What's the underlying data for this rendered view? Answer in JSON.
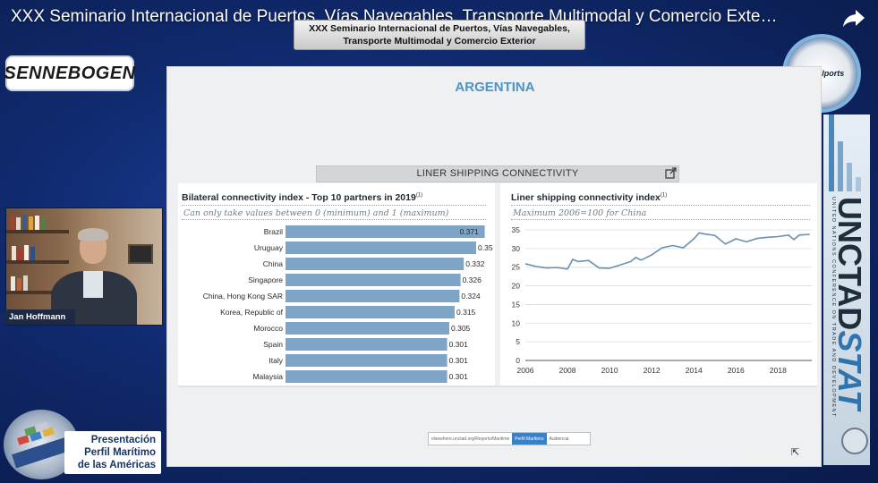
{
  "video": {
    "title": "XXX Seminario Internacional de Puertos, Vías Navegables, Transporte Multimodal y Comercio Exte…",
    "share_icon": "share-arrow-icon"
  },
  "banner": {
    "line1": "XXX Seminario Internacional de Puertos, Vías Navegables,",
    "line2": "Transporte Multimodal y Comercio Exterior"
  },
  "logos": {
    "sennebogen": "SENNEBOGEN",
    "globalports": "Globalports",
    "perfil": [
      "Presentación",
      "Perfil Marítimo",
      "de las Américas"
    ]
  },
  "presenter": {
    "name": "Jan Hoffmann"
  },
  "slide": {
    "country": "ARGENTINA",
    "section": "LINER SHIPPING CONNECTIVITY",
    "left_panel": {
      "title": "Bilateral connectivity index - Top 10 partners in 2019",
      "title_note": "(1)",
      "subtitle": "Can only take values between 0 (minimum) and 1 (maximum)"
    },
    "right_panel": {
      "title": "Liner shipping connectivity index",
      "title_note": "(1)",
      "subtitle": "Maximum 2006=100 for China"
    },
    "bottom_tool": [
      "elsewhere.unctad.org/Reports/Maritime",
      "Perfil Marítimo",
      "Audiencia"
    ]
  },
  "unctad": {
    "brand": "UNCTAD",
    "brand_stat": "STAT",
    "tagline": "UNITED NATIONS CONFERENCE ON TRADE AND DEVELOPMENT"
  },
  "chart_data": [
    {
      "type": "bar",
      "orientation": "horizontal",
      "title": "Bilateral connectivity index - Top 10 partners in 2019",
      "categories": [
        "Brazil",
        "Uruguay",
        "China",
        "Singapore",
        "China, Hong Kong SAR",
        "Korea, Republic of",
        "Morocco",
        "Spain",
        "Italy",
        "Malaysia"
      ],
      "values": [
        0.371,
        0.355,
        0.332,
        0.326,
        0.324,
        0.315,
        0.305,
        0.301,
        0.301,
        0.301
      ],
      "labels": [
        "0.371",
        "0.355",
        "0.332",
        "0.326",
        "0.324",
        "0.315",
        "0.305",
        "0.301",
        "0.301",
        "0.301"
      ],
      "xlim": [
        0,
        0.38
      ],
      "bar_color": "#7ea4c6"
    },
    {
      "type": "line",
      "title": "Liner shipping connectivity index",
      "x": [
        2006.0,
        2006.5,
        2007.0,
        2007.5,
        2008.0,
        2008.25,
        2008.5,
        2009.0,
        2009.5,
        2010.0,
        2010.5,
        2011.0,
        2011.25,
        2011.5,
        2012.0,
        2012.5,
        2013.0,
        2013.5,
        2014.0,
        2014.25,
        2014.5,
        2015.0,
        2015.5,
        2016.0,
        2016.5,
        2017.0,
        2017.5,
        2018.0,
        2018.5,
        2018.75,
        2019.0,
        2019.5
      ],
      "y": [
        25.9,
        25.2,
        24.8,
        24.9,
        24.5,
        27.1,
        26.5,
        26.8,
        24.8,
        24.7,
        25.6,
        26.5,
        27.6,
        26.9,
        28.3,
        30.2,
        30.8,
        30.2,
        32.6,
        34.2,
        33.9,
        33.5,
        31.2,
        32.6,
        31.8,
        32.7,
        33.0,
        33.2,
        33.6,
        32.4,
        33.6,
        33.8
      ],
      "xticks": [
        "2006",
        "2008",
        "2010",
        "2012",
        "2014",
        "2016",
        "2018"
      ],
      "yticks": [
        "0",
        "5",
        "10",
        "15",
        "20",
        "25",
        "30",
        "35"
      ],
      "xlim": [
        2006,
        2019.6
      ],
      "ylim": [
        0,
        35
      ],
      "grid": true,
      "line_color": "#6a8fb0"
    }
  ]
}
